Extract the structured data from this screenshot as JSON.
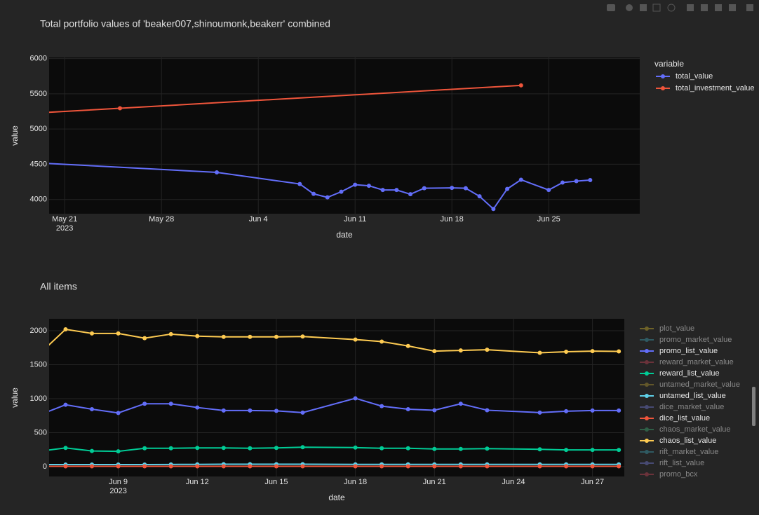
{
  "chart_data": [
    {
      "type": "line",
      "title": "Total portfolio values of 'beaker007,shinoumonk,beakerr' combined",
      "xlabel": "date",
      "ylabel": "value",
      "legend_title": "variable",
      "x_year": "2023",
      "xlim": [
        "2023-05-19T21:00",
        "2023-07-01T14:00"
      ],
      "xticks": [
        {
          "value": "2023-05-21",
          "label": "May 21"
        },
        {
          "value": "2023-05-28",
          "label": "May 28"
        },
        {
          "value": "2023-06-04",
          "label": "Jun 4"
        },
        {
          "value": "2023-06-11",
          "label": "Jun 11"
        },
        {
          "value": "2023-06-18",
          "label": "Jun 18"
        },
        {
          "value": "2023-06-25",
          "label": "Jun 25"
        }
      ],
      "ylim": [
        3798,
        6016
      ],
      "yticks": [
        4000,
        4500,
        5000,
        5500,
        6000
      ],
      "grid": true,
      "series": [
        {
          "name": "total_value",
          "color": "#636efa",
          "x": [
            "2023-05-19",
            "2023-06-01",
            "2023-06-07",
            "2023-06-08",
            "2023-06-09",
            "2023-06-10",
            "2023-06-11",
            "2023-06-12",
            "2023-06-13",
            "2023-06-14",
            "2023-06-15",
            "2023-06-16",
            "2023-06-18",
            "2023-06-19",
            "2023-06-20",
            "2023-06-21",
            "2023-06-22",
            "2023-06-23",
            "2023-06-25",
            "2023-06-26",
            "2023-06-27",
            "2023-06-28"
          ],
          "values": [
            4520,
            4385,
            4220,
            4080,
            4030,
            4110,
            4210,
            4195,
            4135,
            4135,
            4075,
            4160,
            4165,
            4160,
            4045,
            3865,
            4150,
            4280,
            4135,
            4240,
            4260,
            4275
          ]
        },
        {
          "name": "total_investment_value",
          "color": "#ef553b",
          "x": [
            "2023-05-19",
            "2023-05-25",
            "2023-06-23"
          ],
          "values": [
            5228,
            5295,
            5620
          ]
        }
      ]
    },
    {
      "type": "line",
      "title": "All items",
      "xlabel": "date",
      "ylabel": "value",
      "x_year": "2023",
      "xlim": [
        "2023-06-06T09:00",
        "2023-06-28T05:00"
      ],
      "xticks": [
        {
          "value": "2023-06-09",
          "label": "Jun 9"
        },
        {
          "value": "2023-06-12",
          "label": "Jun 12"
        },
        {
          "value": "2023-06-15",
          "label": "Jun 15"
        },
        {
          "value": "2023-06-18",
          "label": "Jun 18"
        },
        {
          "value": "2023-06-21",
          "label": "Jun 21"
        },
        {
          "value": "2023-06-24",
          "label": "Jun 24"
        },
        {
          "value": "2023-06-27",
          "label": "Jun 27"
        }
      ],
      "ylim": [
        -145,
        2175
      ],
      "yticks": [
        0,
        500,
        1000,
        1500,
        2000
      ],
      "grid": true,
      "x": [
        "2023-06-06",
        "2023-06-07",
        "2023-06-08",
        "2023-06-09",
        "2023-06-10",
        "2023-06-11",
        "2023-06-12",
        "2023-06-13",
        "2023-06-14",
        "2023-06-15",
        "2023-06-16",
        "2023-06-18",
        "2023-06-19",
        "2023-06-20",
        "2023-06-21",
        "2023-06-22",
        "2023-06-23",
        "2023-06-25",
        "2023-06-26",
        "2023-06-27",
        "2023-06-28"
      ],
      "series": [
        {
          "name": "plot_value",
          "color": "#b6a02c",
          "visible": false
        },
        {
          "name": "promo_market_value",
          "color": "#3a8fa0",
          "visible": false
        },
        {
          "name": "promo_list_value",
          "color": "#636efa",
          "values": [
            760,
            910,
            845,
            790,
            925,
            925,
            870,
            825,
            825,
            820,
            795,
            1005,
            890,
            845,
            830,
            925,
            830,
            795,
            815,
            825,
            825
          ]
        },
        {
          "name": "reward_market_value",
          "color": "#b04050",
          "visible": false
        },
        {
          "name": "reward_list_value",
          "color": "#00cc96",
          "values": [
            225,
            275,
            230,
            225,
            270,
            270,
            275,
            275,
            270,
            275,
            285,
            280,
            270,
            270,
            260,
            260,
            265,
            255,
            245,
            245,
            245
          ]
        },
        {
          "name": "untamed_market_value",
          "color": "#a08a30",
          "visible": false
        },
        {
          "name": "untamed_list_value",
          "color": "#5fd0e8",
          "values": [
            30,
            30,
            30,
            30,
            30,
            32,
            33,
            35,
            35,
            35,
            35,
            33,
            33,
            33,
            33,
            33,
            33,
            33,
            33,
            33,
            33
          ]
        },
        {
          "name": "dice_market_value",
          "color": "#6a70c0",
          "visible": false
        },
        {
          "name": "dice_list_value",
          "color": "#ef553b",
          "values": [
            5,
            5,
            5,
            5,
            5,
            5,
            5,
            5,
            5,
            5,
            5,
            5,
            5,
            5,
            5,
            5,
            5,
            5,
            5,
            5,
            5
          ]
        },
        {
          "name": "chaos_market_value",
          "color": "#3a9a6a",
          "visible": false
        },
        {
          "name": "chaos_list_value",
          "color": "#fecb52",
          "values": [
            1656,
            2020,
            1960,
            1960,
            1890,
            1950,
            1920,
            1910,
            1910,
            1910,
            1915,
            1870,
            1840,
            1775,
            1700,
            1710,
            1720,
            1675,
            1690,
            1700,
            1695
          ]
        },
        {
          "name": "rift_market_value",
          "color": "#3a8fa0",
          "visible": false
        },
        {
          "name": "rift_list_value",
          "color": "#6a70c0",
          "visible": false
        },
        {
          "name": "promo_bcx",
          "color": "#b04050",
          "visible": false
        }
      ]
    }
  ]
}
